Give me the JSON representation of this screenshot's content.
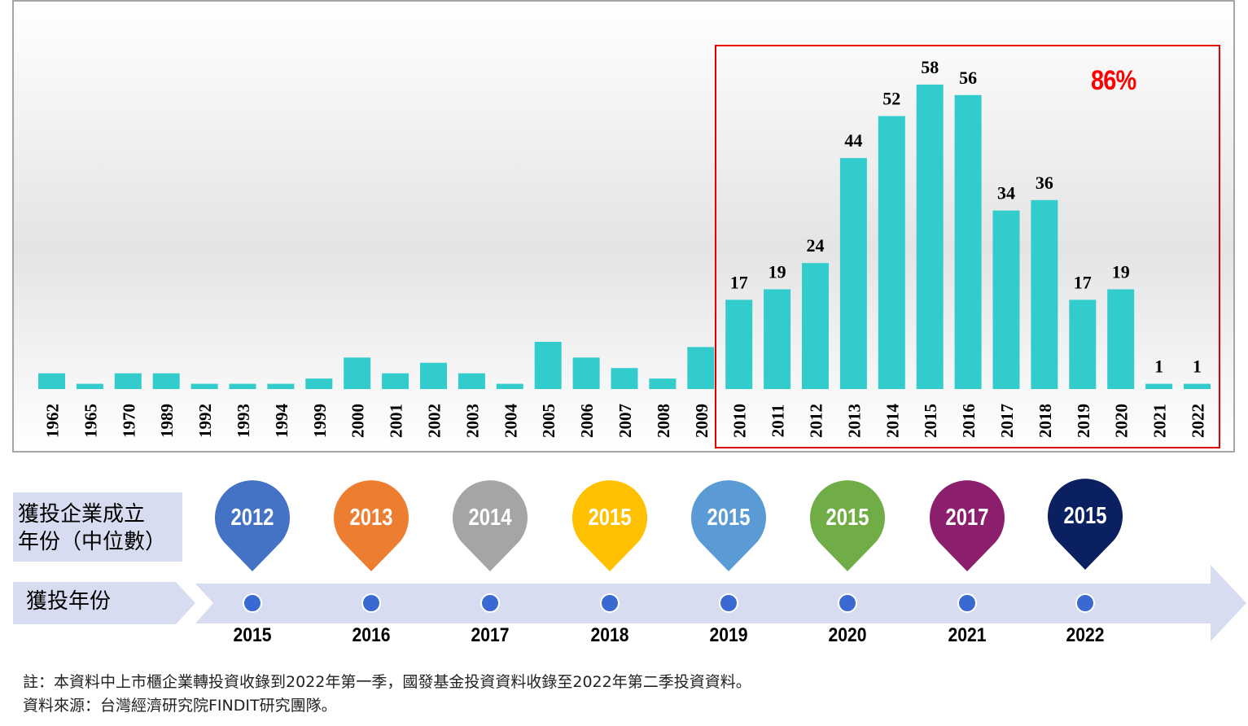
{
  "chart_data": {
    "type": "bar",
    "categories": [
      "1962",
      "1965",
      "1970",
      "1989",
      "1992",
      "1993",
      "1994",
      "1999",
      "2000",
      "2001",
      "2002",
      "2003",
      "2004",
      "2005",
      "2006",
      "2007",
      "2008",
      "2009",
      "2010",
      "2011",
      "2012",
      "2013",
      "2014",
      "2015",
      "2016",
      "2017",
      "2018",
      "2019",
      "2020",
      "2021",
      "2022"
    ],
    "values": [
      3,
      1,
      3,
      3,
      1,
      1,
      1,
      2,
      6,
      3,
      5,
      3,
      1,
      9,
      6,
      4,
      2,
      8,
      17,
      19,
      24,
      44,
      52,
      58,
      56,
      34,
      36,
      17,
      19,
      1,
      1
    ],
    "labeled_from": "2010",
    "highlight_range": [
      "2010",
      "2022"
    ],
    "highlight_text": "86%",
    "bar_color": "#33cccc",
    "highlight_color": "#e00000"
  },
  "timeline": {
    "founding_label_line1": "獲投企業成立",
    "founding_label_line2": "年份（中位數）",
    "invest_label": "獲投年份",
    "pins": [
      {
        "year": "2012",
        "color": "#4472c4"
      },
      {
        "year": "2013",
        "color": "#ed7d31"
      },
      {
        "year": "2014",
        "color": "#a5a5a5"
      },
      {
        "year": "2015",
        "color": "#ffc000"
      },
      {
        "year": "2015",
        "color": "#5b9bd5"
      },
      {
        "year": "2015",
        "color": "#70ad47"
      },
      {
        "year": "2017",
        "color": "#8b1f6e"
      },
      {
        "year": "2015",
        "color": "#0b2060"
      }
    ],
    "invest_years": [
      "2015",
      "2016",
      "2017",
      "2018",
      "2019",
      "2020",
      "2021",
      "2022"
    ],
    "arrow_color": "#d7dcf0",
    "dot_color": "#3a6ad1"
  },
  "notes": {
    "line1": "註：本資料中上市櫃企業轉投資收錄到2022年第一季，國發基金投資資料收錄至2022年第二季投資資料。",
    "line2": "資料來源：台灣經濟研究院FINDIT研究團隊。"
  }
}
